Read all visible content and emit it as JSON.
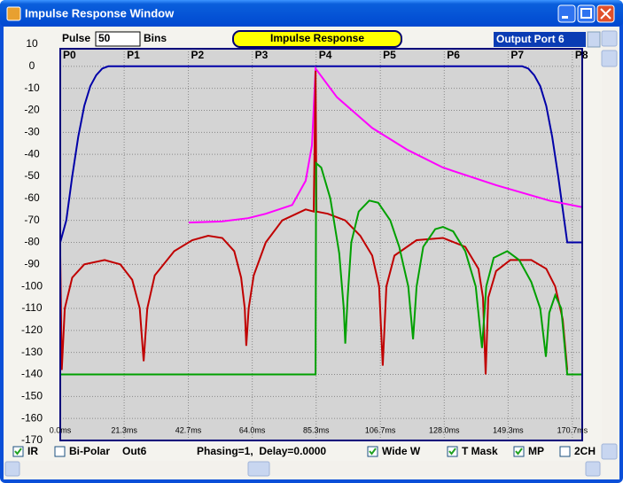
{
  "window": {
    "title": "Impulse Response Window"
  },
  "toolbar": {
    "pulse_label": "Pulse",
    "pulse_value": "50",
    "bins_label": "Bins",
    "mode": "Impulse Response",
    "port": "Output Port 6"
  },
  "chart_data": {
    "type": "line",
    "xlim": [
      0,
      174
    ],
    "xticks": [
      {
        "value": 0,
        "label": "0.0ms"
      },
      {
        "value": 21.3,
        "label": "21.3ms"
      },
      {
        "value": 42.7,
        "label": "42.7ms"
      },
      {
        "value": 64.0,
        "label": "64.0ms"
      },
      {
        "value": 85.3,
        "label": "85.3ms"
      },
      {
        "value": 106.7,
        "label": "106.7ms"
      },
      {
        "value": 128.0,
        "label": "128.0ms"
      },
      {
        "value": 149.3,
        "label": "149.3ms"
      },
      {
        "value": 170.7,
        "label": "170.7ms"
      }
    ],
    "port_labels": [
      "P0",
      "P1",
      "P2",
      "P3",
      "P4",
      "P5",
      "P6",
      "P7",
      "P8"
    ],
    "ylim": [
      -170,
      10
    ],
    "yticks": [
      10,
      0,
      -10,
      -20,
      -30,
      -40,
      -50,
      -60,
      -70,
      -80,
      -90,
      -100,
      -110,
      -120,
      -130,
      -140,
      -150,
      -160,
      -170
    ],
    "grid": true,
    "series": [
      {
        "color": "#0000a8",
        "x": [
          0,
          2,
          4,
          6,
          8,
          10,
          12,
          14,
          16,
          154,
          156,
          158,
          160,
          162,
          164,
          166,
          168,
          169,
          174
        ],
        "values": [
          -80,
          -70,
          -50,
          -32,
          -18,
          -9,
          -4,
          -1,
          0,
          0,
          -1,
          -4,
          -9,
          -18,
          -32,
          -50,
          -70,
          -80,
          -80
        ]
      },
      {
        "color": "#ff00ff",
        "x": [
          42.8,
          53.8,
          62.6,
          68.5,
          77.3,
          81.8,
          83.9,
          85.1,
          92.2,
          104,
          115.8,
          127.6,
          145.3,
          163,
          174
        ],
        "values": [
          -71,
          -70.5,
          -69,
          -67,
          -63,
          -52,
          -36,
          -1,
          -14,
          -28,
          -38,
          -46,
          -54,
          -61,
          -64
        ]
      },
      {
        "color": "#c00000",
        "x": [
          0,
          0.5,
          1.5,
          4,
          8,
          14.8,
          20,
          24,
          26.5,
          27.8,
          29,
          31.5,
          38,
          44,
          49.3,
          54,
          58,
          60.3,
          61.5,
          62,
          62.8,
          64.5,
          68.5,
          74,
          81.8,
          84.5,
          85.1,
          85.4,
          89.2,
          95,
          100,
          104,
          106.3,
          107.5,
          108.7,
          111.4,
          118.8,
          127.6,
          135,
          139.4,
          140.9,
          141.8,
          142.7,
          145.3,
          150,
          157,
          162,
          165,
          167.5,
          169
        ],
        "values": [
          -86,
          -138,
          -110,
          -96,
          -90,
          -88,
          -90,
          -97,
          -110,
          -134,
          -110,
          -95,
          -84,
          -79,
          -77,
          -78,
          -84,
          -96,
          -110,
          -127,
          -110,
          -95,
          -80,
          -70,
          -65,
          -66,
          -2,
          -66,
          -67,
          -70,
          -77,
          -86,
          -100,
          -136,
          -100,
          -86,
          -79,
          -78,
          -82,
          -92,
          -105,
          -140,
          -105,
          -93,
          -88,
          -88,
          -92,
          -100,
          -115,
          -138
        ]
      },
      {
        "color": "#00a000",
        "x": [
          0,
          85.1,
          85.3,
          87,
          90,
          93,
          94.5,
          95,
          95.8,
          97,
          99.5,
          103,
          106,
          110,
          113,
          116,
          117.6,
          118.8,
          121,
          125,
          127.6,
          131,
          135,
          138.5,
          140.6,
          142,
          144.5,
          149,
          153,
          157,
          160,
          161.9,
          163,
          165,
          167,
          169,
          174
        ],
        "values": [
          -140,
          -140,
          -44,
          -46,
          -60,
          -85,
          -110,
          -126,
          -105,
          -80,
          -66,
          -61,
          -62,
          -70,
          -82,
          -100,
          -124,
          -100,
          -82,
          -74,
          -73,
          -75,
          -84,
          -100,
          -128,
          -100,
          -87,
          -84,
          -88,
          -98,
          -110,
          -132,
          -112,
          -104,
          -110,
          -140,
          -140
        ]
      }
    ]
  },
  "controls": [
    {
      "label": "IR",
      "checked": true
    },
    {
      "label": "Bi-Polar",
      "checked": false
    }
  ],
  "output": "Out6",
  "status": "Phasing=1,  Delay=0.0000",
  "options": [
    {
      "label": "Wide W",
      "checked": true
    },
    {
      "label": "T Mask",
      "checked": true
    },
    {
      "label": "MP",
      "checked": true
    },
    {
      "label": "2CH",
      "checked": false
    }
  ]
}
